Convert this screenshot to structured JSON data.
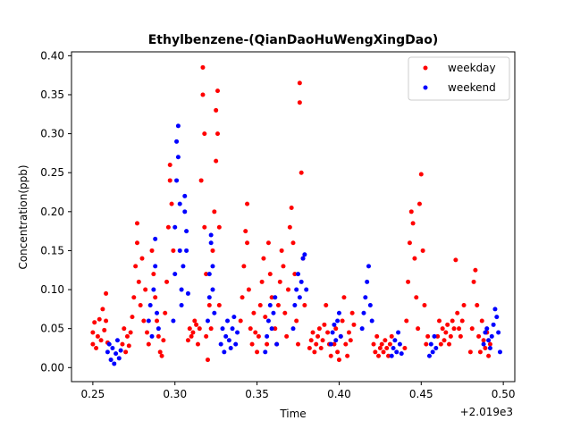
{
  "chart_data": {
    "type": "scatter",
    "title": "Ethylbenzene-(QianDaoHuWengXingDao)",
    "xlabel": "Time",
    "ylabel": "Concentration(ppb)",
    "x_offset_label": "+2.019e3",
    "xlim": [
      0.237,
      0.507
    ],
    "ylim": [
      -0.018,
      0.405
    ],
    "xticks": [
      0.25,
      0.3,
      0.35,
      0.4,
      0.45,
      0.5
    ],
    "xtick_labels": [
      "0.25",
      "0.30",
      "0.35",
      "0.40",
      "0.45",
      "0.50"
    ],
    "yticks": [
      0.0,
      0.05,
      0.1,
      0.15,
      0.2,
      0.25,
      0.3,
      0.35,
      0.4
    ],
    "ytick_labels": [
      "0.00",
      "0.05",
      "0.10",
      "0.15",
      "0.20",
      "0.25",
      "0.30",
      "0.35",
      "0.40"
    ],
    "grid": false,
    "legend_position": "top-right",
    "series": [
      {
        "name": "weekday",
        "color": "#ff0000",
        "points": [
          [
            0.25,
            0.03
          ],
          [
            0.25,
            0.045
          ],
          [
            0.251,
            0.058
          ],
          [
            0.252,
            0.025
          ],
          [
            0.253,
            0.04
          ],
          [
            0.254,
            0.062
          ],
          [
            0.255,
            0.035
          ],
          [
            0.256,
            0.075
          ],
          [
            0.257,
            0.048
          ],
          [
            0.258,
            0.095
          ],
          [
            0.258,
            0.06
          ],
          [
            0.259,
            0.032
          ],
          [
            0.268,
            0.03
          ],
          [
            0.269,
            0.05
          ],
          [
            0.27,
            0.02
          ],
          [
            0.271,
            0.04
          ],
          [
            0.272,
            0.028
          ],
          [
            0.273,
            0.045
          ],
          [
            0.274,
            0.065
          ],
          [
            0.275,
            0.09
          ],
          [
            0.276,
            0.13
          ],
          [
            0.277,
            0.185
          ],
          [
            0.277,
            0.16
          ],
          [
            0.278,
            0.11
          ],
          [
            0.279,
            0.08
          ],
          [
            0.28,
            0.14
          ],
          [
            0.281,
            0.06
          ],
          [
            0.282,
            0.1
          ],
          [
            0.283,
            0.045
          ],
          [
            0.284,
            0.03
          ],
          [
            0.286,
            0.15
          ],
          [
            0.287,
            0.12
          ],
          [
            0.288,
            0.09
          ],
          [
            0.289,
            0.06
          ],
          [
            0.29,
            0.04
          ],
          [
            0.291,
            0.02
          ],
          [
            0.292,
            0.015
          ],
          [
            0.293,
            0.035
          ],
          [
            0.294,
            0.07
          ],
          [
            0.295,
            0.11
          ],
          [
            0.296,
            0.18
          ],
          [
            0.297,
            0.26
          ],
          [
            0.297,
            0.24
          ],
          [
            0.298,
            0.21
          ],
          [
            0.299,
            0.15
          ],
          [
            0.308,
            0.035
          ],
          [
            0.309,
            0.05
          ],
          [
            0.31,
            0.04
          ],
          [
            0.311,
            0.045
          ],
          [
            0.312,
            0.06
          ],
          [
            0.313,
            0.055
          ],
          [
            0.314,
            0.03
          ],
          [
            0.315,
            0.05
          ],
          [
            0.316,
            0.24
          ],
          [
            0.317,
            0.385
          ],
          [
            0.317,
            0.35
          ],
          [
            0.318,
            0.3
          ],
          [
            0.318,
            0.18
          ],
          [
            0.319,
            0.12
          ],
          [
            0.319,
            0.04
          ],
          [
            0.32,
            0.01
          ],
          [
            0.321,
            0.08
          ],
          [
            0.322,
            0.05
          ],
          [
            0.323,
            0.15
          ],
          [
            0.324,
            0.2
          ],
          [
            0.325,
            0.265
          ],
          [
            0.325,
            0.33
          ],
          [
            0.326,
            0.355
          ],
          [
            0.326,
            0.3
          ],
          [
            0.327,
            0.18
          ],
          [
            0.327,
            0.08
          ],
          [
            0.34,
            0.06
          ],
          [
            0.341,
            0.09
          ],
          [
            0.342,
            0.13
          ],
          [
            0.343,
            0.175
          ],
          [
            0.344,
            0.21
          ],
          [
            0.344,
            0.16
          ],
          [
            0.345,
            0.1
          ],
          [
            0.346,
            0.05
          ],
          [
            0.347,
            0.03
          ],
          [
            0.348,
            0.07
          ],
          [
            0.349,
            0.045
          ],
          [
            0.35,
            0.02
          ],
          [
            0.351,
            0.04
          ],
          [
            0.352,
            0.08
          ],
          [
            0.353,
            0.11
          ],
          [
            0.354,
            0.14
          ],
          [
            0.355,
            0.065
          ],
          [
            0.356,
            0.03
          ],
          [
            0.357,
            0.16
          ],
          [
            0.358,
            0.12
          ],
          [
            0.359,
            0.09
          ],
          [
            0.361,
            0.05
          ],
          [
            0.362,
            0.03
          ],
          [
            0.363,
            0.08
          ],
          [
            0.364,
            0.11
          ],
          [
            0.365,
            0.15
          ],
          [
            0.366,
            0.13
          ],
          [
            0.367,
            0.07
          ],
          [
            0.368,
            0.04
          ],
          [
            0.369,
            0.1
          ],
          [
            0.37,
            0.18
          ],
          [
            0.371,
            0.205
          ],
          [
            0.372,
            0.16
          ],
          [
            0.373,
            0.12
          ],
          [
            0.374,
            0.06
          ],
          [
            0.375,
            0.03
          ],
          [
            0.376,
            0.34
          ],
          [
            0.376,
            0.365
          ],
          [
            0.377,
            0.25
          ],
          [
            0.378,
            0.14
          ],
          [
            0.379,
            0.08
          ],
          [
            0.382,
            0.025
          ],
          [
            0.383,
            0.035
          ],
          [
            0.384,
            0.045
          ],
          [
            0.385,
            0.02
          ],
          [
            0.386,
            0.03
          ],
          [
            0.387,
            0.04
          ],
          [
            0.388,
            0.05
          ],
          [
            0.389,
            0.025
          ],
          [
            0.39,
            0.035
          ],
          [
            0.391,
            0.055
          ],
          [
            0.392,
            0.08
          ],
          [
            0.393,
            0.045
          ],
          [
            0.394,
            0.03
          ],
          [
            0.395,
            0.015
          ],
          [
            0.397,
            0.03
          ],
          [
            0.398,
            0.05
          ],
          [
            0.399,
            0.02
          ],
          [
            0.4,
            0.01
          ],
          [
            0.401,
            0.04
          ],
          [
            0.402,
            0.06
          ],
          [
            0.403,
            0.09
          ],
          [
            0.404,
            0.03
          ],
          [
            0.405,
            0.015
          ],
          [
            0.406,
            0.045
          ],
          [
            0.407,
            0.035
          ],
          [
            0.408,
            0.07
          ],
          [
            0.409,
            0.055
          ],
          [
            0.421,
            0.03
          ],
          [
            0.422,
            0.02
          ],
          [
            0.423,
            0.04
          ],
          [
            0.424,
            0.015
          ],
          [
            0.425,
            0.025
          ],
          [
            0.426,
            0.03
          ],
          [
            0.427,
            0.02
          ],
          [
            0.428,
            0.035
          ],
          [
            0.429,
            0.025
          ],
          [
            0.43,
            0.015
          ],
          [
            0.431,
            0.03
          ],
          [
            0.432,
            0.04
          ],
          [
            0.44,
            0.025
          ],
          [
            0.441,
            0.06
          ],
          [
            0.442,
            0.11
          ],
          [
            0.443,
            0.16
          ],
          [
            0.444,
            0.2
          ],
          [
            0.445,
            0.185
          ],
          [
            0.446,
            0.14
          ],
          [
            0.447,
            0.09
          ],
          [
            0.448,
            0.05
          ],
          [
            0.449,
            0.21
          ],
          [
            0.45,
            0.248
          ],
          [
            0.451,
            0.15
          ],
          [
            0.452,
            0.08
          ],
          [
            0.453,
            0.03
          ],
          [
            0.454,
            0.04
          ],
          [
            0.46,
            0.04
          ],
          [
            0.461,
            0.06
          ],
          [
            0.462,
            0.03
          ],
          [
            0.463,
            0.05
          ],
          [
            0.464,
            0.035
          ],
          [
            0.465,
            0.045
          ],
          [
            0.466,
            0.055
          ],
          [
            0.467,
            0.03
          ],
          [
            0.468,
            0.04
          ],
          [
            0.469,
            0.06
          ],
          [
            0.47,
            0.05
          ],
          [
            0.471,
            0.138
          ],
          [
            0.472,
            0.07
          ],
          [
            0.473,
            0.05
          ],
          [
            0.474,
            0.04
          ],
          [
            0.475,
            0.06
          ],
          [
            0.476,
            0.08
          ],
          [
            0.48,
            0.02
          ],
          [
            0.481,
            0.05
          ],
          [
            0.482,
            0.11
          ],
          [
            0.483,
            0.125
          ],
          [
            0.484,
            0.08
          ],
          [
            0.485,
            0.04
          ],
          [
            0.486,
            0.02
          ],
          [
            0.487,
            0.06
          ],
          [
            0.488,
            0.035
          ],
          [
            0.489,
            0.025
          ],
          [
            0.49,
            0.045
          ],
          [
            0.491,
            0.015
          ],
          [
            0.492,
            0.03
          ]
        ]
      },
      {
        "name": "weekend",
        "color": "#0000ff",
        "points": [
          [
            0.259,
            0.02
          ],
          [
            0.26,
            0.03
          ],
          [
            0.261,
            0.01
          ],
          [
            0.262,
            0.025
          ],
          [
            0.263,
            0.005
          ],
          [
            0.264,
            0.018
          ],
          [
            0.265,
            0.035
          ],
          [
            0.266,
            0.012
          ],
          [
            0.267,
            0.022
          ],
          [
            0.284,
            0.06
          ],
          [
            0.285,
            0.08
          ],
          [
            0.286,
            0.04
          ],
          [
            0.287,
            0.1
          ],
          [
            0.288,
            0.165
          ],
          [
            0.288,
            0.13
          ],
          [
            0.289,
            0.07
          ],
          [
            0.29,
            0.05
          ],
          [
            0.299,
            0.06
          ],
          [
            0.3,
            0.12
          ],
          [
            0.3,
            0.18
          ],
          [
            0.301,
            0.24
          ],
          [
            0.301,
            0.29
          ],
          [
            0.302,
            0.31
          ],
          [
            0.302,
            0.27
          ],
          [
            0.303,
            0.21
          ],
          [
            0.303,
            0.15
          ],
          [
            0.304,
            0.1
          ],
          [
            0.304,
            0.08
          ],
          [
            0.305,
            0.13
          ],
          [
            0.306,
            0.2
          ],
          [
            0.306,
            0.22
          ],
          [
            0.307,
            0.175
          ],
          [
            0.307,
            0.15
          ],
          [
            0.308,
            0.095
          ],
          [
            0.32,
            0.06
          ],
          [
            0.321,
            0.09
          ],
          [
            0.321,
            0.12
          ],
          [
            0.322,
            0.16
          ],
          [
            0.322,
            0.17
          ],
          [
            0.323,
            0.13
          ],
          [
            0.323,
            0.1
          ],
          [
            0.324,
            0.07
          ],
          [
            0.328,
            0.03
          ],
          [
            0.329,
            0.05
          ],
          [
            0.33,
            0.02
          ],
          [
            0.331,
            0.04
          ],
          [
            0.332,
            0.06
          ],
          [
            0.333,
            0.035
          ],
          [
            0.334,
            0.025
          ],
          [
            0.335,
            0.05
          ],
          [
            0.336,
            0.065
          ],
          [
            0.337,
            0.03
          ],
          [
            0.338,
            0.045
          ],
          [
            0.355,
            0.02
          ],
          [
            0.356,
            0.04
          ],
          [
            0.357,
            0.06
          ],
          [
            0.358,
            0.08
          ],
          [
            0.359,
            0.05
          ],
          [
            0.36,
            0.07
          ],
          [
            0.361,
            0.09
          ],
          [
            0.362,
            0.03
          ],
          [
            0.372,
            0.05
          ],
          [
            0.373,
            0.08
          ],
          [
            0.374,
            0.1
          ],
          [
            0.375,
            0.12
          ],
          [
            0.376,
            0.09
          ],
          [
            0.377,
            0.11
          ],
          [
            0.378,
            0.14
          ],
          [
            0.379,
            0.145
          ],
          [
            0.38,
            0.1
          ],
          [
            0.395,
            0.03
          ],
          [
            0.396,
            0.045
          ],
          [
            0.397,
            0.055
          ],
          [
            0.398,
            0.035
          ],
          [
            0.399,
            0.06
          ],
          [
            0.4,
            0.07
          ],
          [
            0.401,
            0.04
          ],
          [
            0.414,
            0.05
          ],
          [
            0.415,
            0.07
          ],
          [
            0.416,
            0.09
          ],
          [
            0.417,
            0.11
          ],
          [
            0.418,
            0.13
          ],
          [
            0.419,
            0.08
          ],
          [
            0.42,
            0.06
          ],
          [
            0.432,
            0.015
          ],
          [
            0.433,
            0.025
          ],
          [
            0.434,
            0.035
          ],
          [
            0.435,
            0.02
          ],
          [
            0.436,
            0.045
          ],
          [
            0.437,
            0.03
          ],
          [
            0.438,
            0.018
          ],
          [
            0.455,
            0.015
          ],
          [
            0.456,
            0.03
          ],
          [
            0.457,
            0.02
          ],
          [
            0.458,
            0.04
          ],
          [
            0.459,
            0.025
          ],
          [
            0.488,
            0.03
          ],
          [
            0.489,
            0.045
          ],
          [
            0.49,
            0.05
          ],
          [
            0.491,
            0.035
          ],
          [
            0.492,
            0.025
          ],
          [
            0.493,
            0.04
          ],
          [
            0.494,
            0.055
          ],
          [
            0.495,
            0.075
          ],
          [
            0.496,
            0.065
          ],
          [
            0.497,
            0.045
          ],
          [
            0.498,
            0.02
          ]
        ]
      }
    ]
  }
}
